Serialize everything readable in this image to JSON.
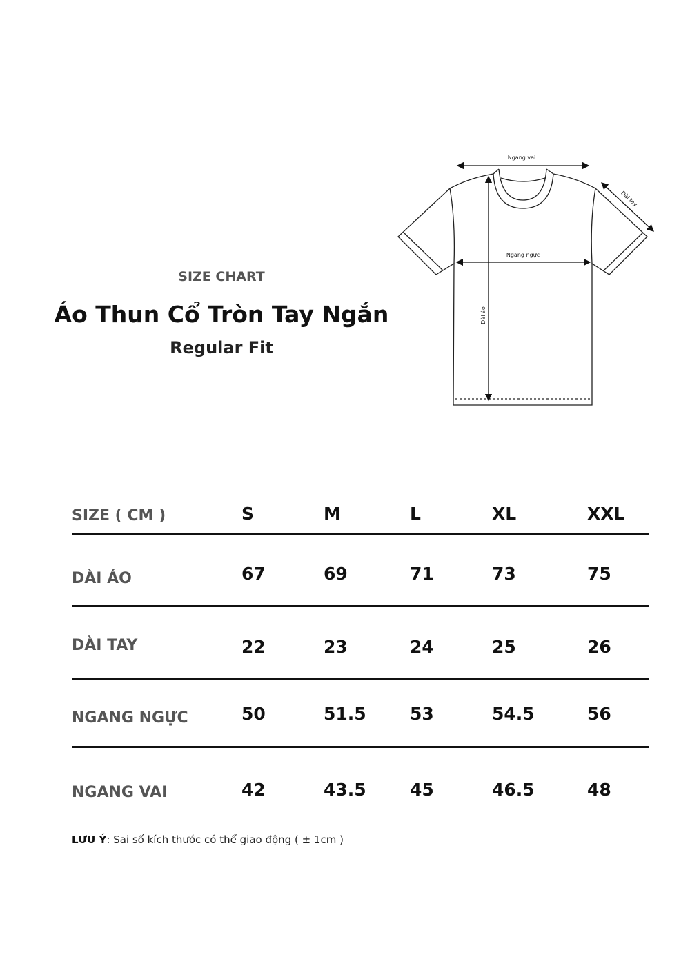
{
  "header": {
    "kicker": "SIZE CHART",
    "title": "Áo Thun Cổ Tròn Tay Ngắn",
    "fit": "Regular Fit"
  },
  "diagram": {
    "shoulder": "Ngang vai",
    "sleeve": "Dài tay",
    "chest": "Ngang ngực",
    "length": "Dài áo"
  },
  "table": {
    "header_label": "SIZE ( CM )",
    "sizes": [
      "S",
      "M",
      "L",
      "XL",
      "XXL"
    ],
    "rows": [
      {
        "label": "DÀI ÁO",
        "values": [
          "67",
          "69",
          "71",
          "73",
          "75"
        ]
      },
      {
        "label": "DÀI TAY",
        "values": [
          "22",
          "23",
          "24",
          "25",
          "26"
        ]
      },
      {
        "label": "NGANG NGỰC",
        "values": [
          "50",
          "51.5",
          "53",
          "54.5",
          "56"
        ]
      },
      {
        "label": "NGANG VAI",
        "values": [
          "42",
          "43.5",
          "45",
          "46.5",
          "48"
        ]
      }
    ]
  },
  "note": {
    "label": "LƯU Ý",
    "text": ": Sai số kích thước có thể giao động ( ± 1cm )"
  }
}
